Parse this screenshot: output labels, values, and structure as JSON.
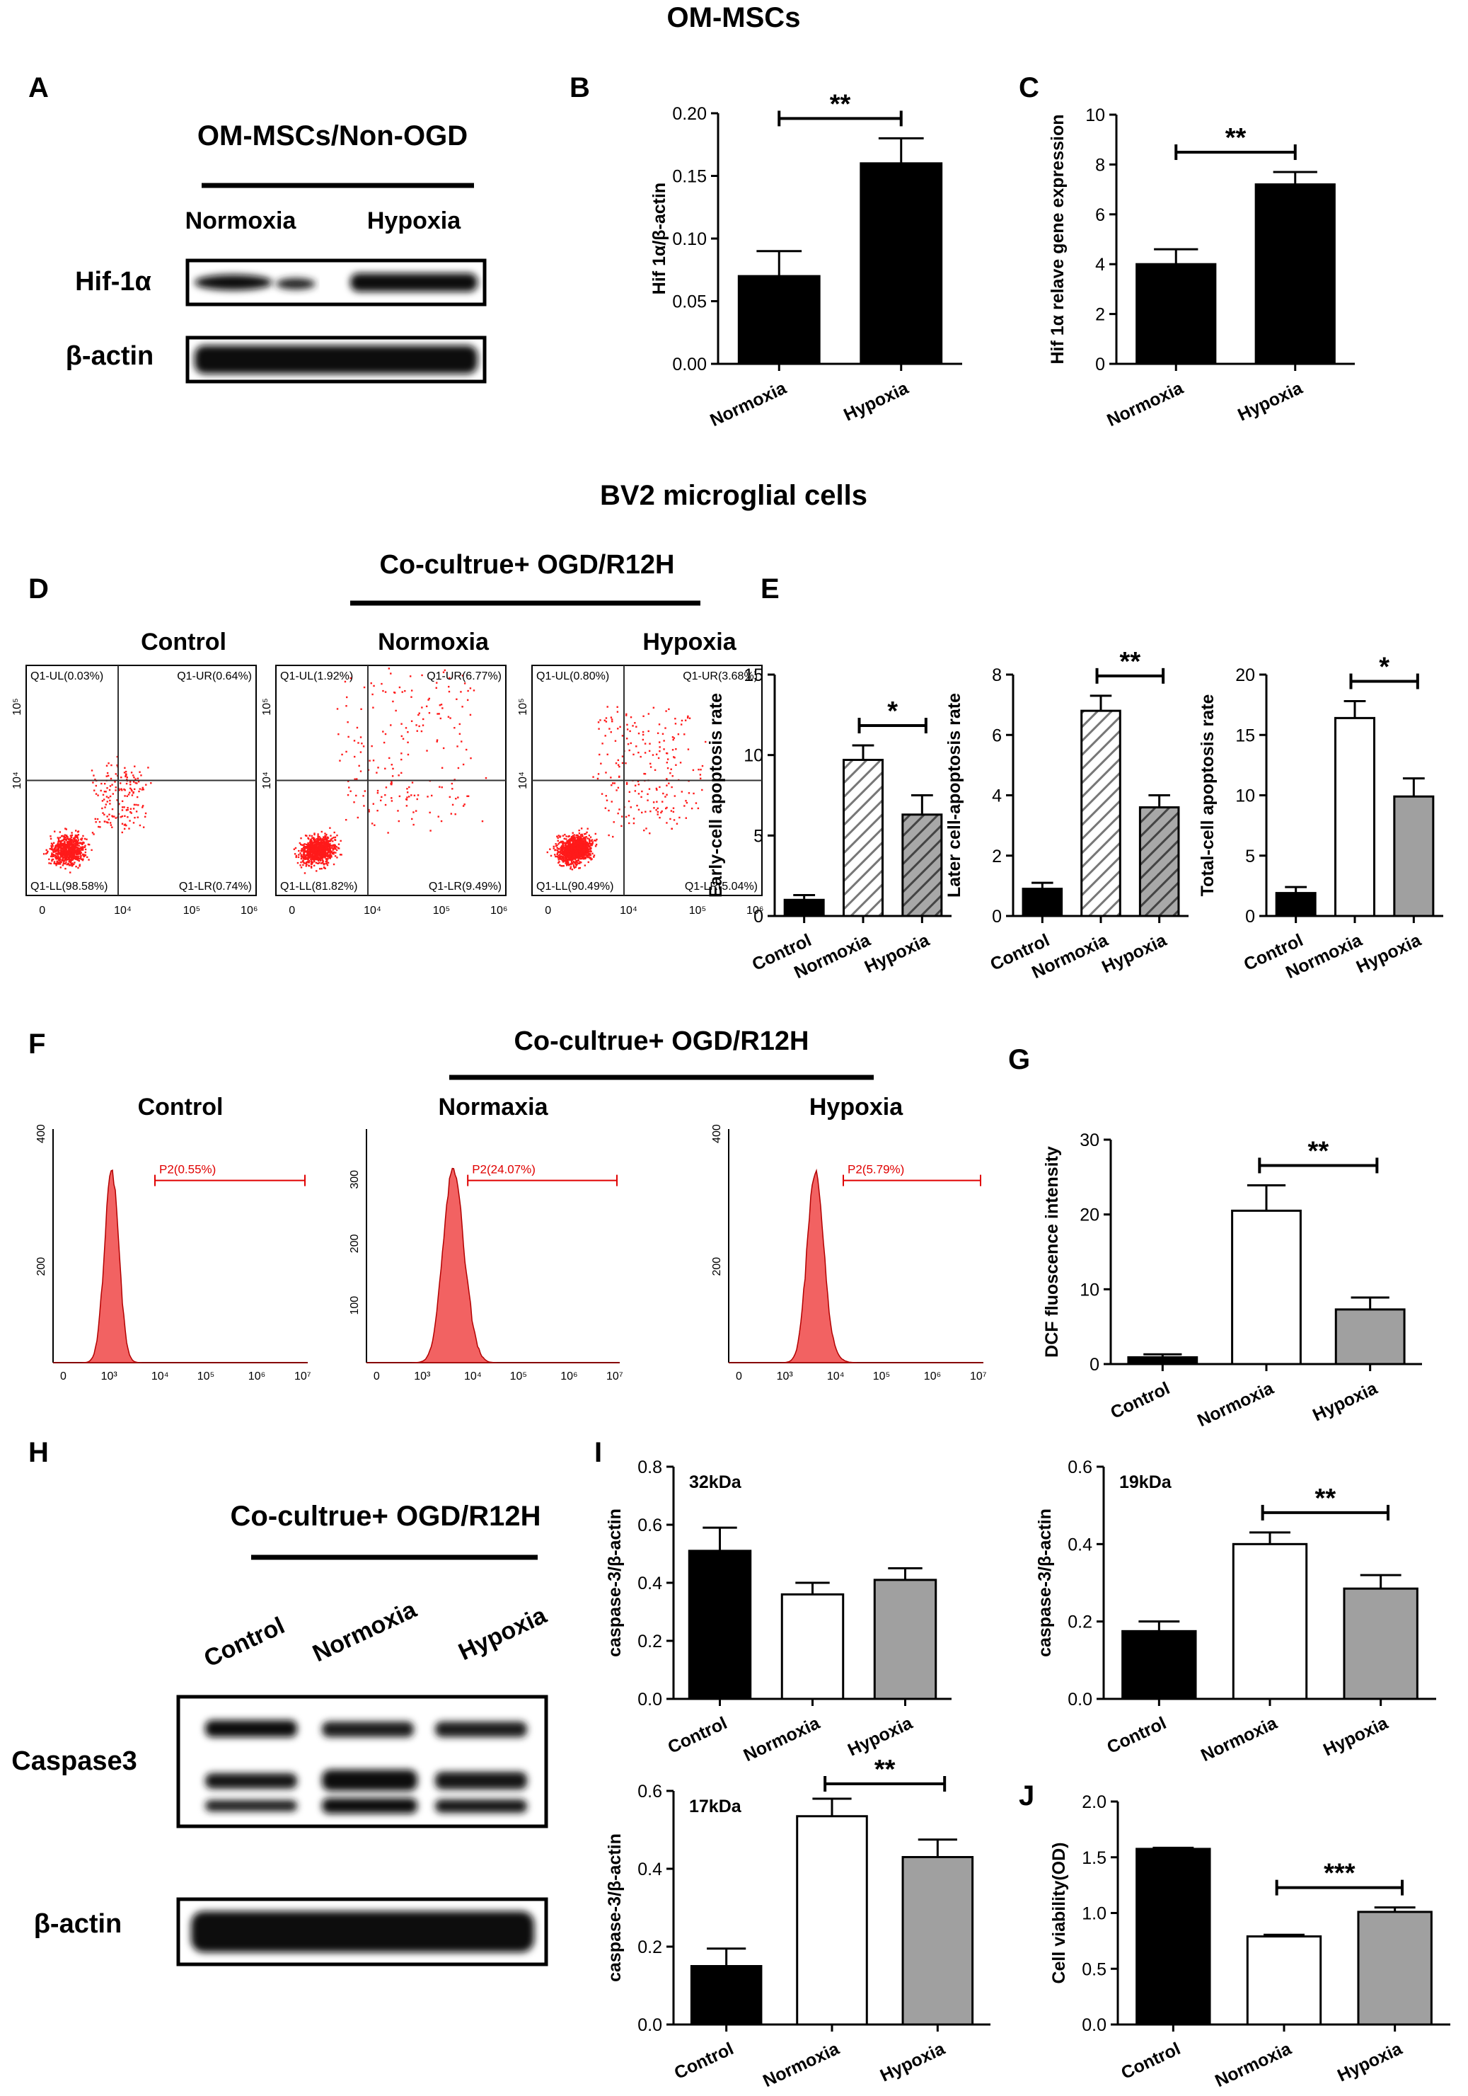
{
  "section_titles": {
    "om_mscs": "OM-MSCs",
    "bv2": "BV2 microglial cells"
  },
  "panel_letters": {
    "A": "A",
    "B": "B",
    "C": "C",
    "D": "D",
    "E": "E",
    "F": "F",
    "G": "G",
    "H": "H",
    "I": "I",
    "J": "J"
  },
  "panel_a": {
    "header": "OM-MSCs/Non-OGD",
    "lanes": [
      "Normoxia",
      "Hypoxia"
    ],
    "rows": [
      "Hif-1α",
      "β-actin"
    ]
  },
  "panel_d": {
    "header": "Co-cultrue+ OGD/R12H",
    "plots": [
      {
        "title": "Control",
        "ul": "Q1-UL(0.03%)",
        "ur": "Q1-UR(0.64%)",
        "ll": "Q1-LL(98.58%)",
        "lr": "Q1-LR(0.74%)"
      },
      {
        "title": "Normoxia",
        "ul": "Q1-UL(1.92%)",
        "ur": "Q1-UR(6.77%)",
        "ll": "Q1-LL(81.82%)",
        "lr": "Q1-LR(9.49%)"
      },
      {
        "title": "Hypoxia",
        "ul": "Q1-UL(0.80%)",
        "ur": "Q1-UR(3.68%)",
        "ll": "Q1-LL(90.49%)",
        "lr": "Q1-LR(5.04%)"
      }
    ],
    "xticks": [
      "0",
      "10⁴",
      "10⁵",
      "10⁶"
    ],
    "yticks": [
      "10⁴",
      "10⁵"
    ]
  },
  "panel_f": {
    "header": "Co-cultrue+ OGD/R12H",
    "plots": [
      {
        "title": "Control",
        "gate": "P2(0.55%)",
        "yticks": [
          "200",
          "400"
        ]
      },
      {
        "title": "Normaxia",
        "gate": "P2(24.07%)",
        "yticks": [
          "100",
          "200",
          "300"
        ]
      },
      {
        "title": "Hypoxia",
        "gate": "P2(5.79%)",
        "yticks": [
          "200",
          "400"
        ]
      }
    ],
    "xticks": [
      "0",
      "10³",
      "10⁴",
      "10⁵",
      "10⁶",
      "10⁷"
    ]
  },
  "panel_h": {
    "header": "Co-cultrue+ OGD/R12H",
    "lanes": [
      "Control",
      "Normoxia",
      "Hypoxia"
    ],
    "rows": [
      "Caspase3",
      "β-actin"
    ]
  },
  "colors": {
    "black": "#000000",
    "gray": "#a0a0a0",
    "white": "#ffffff",
    "dot_red": "#ff1a1a",
    "hist_fill": "#f26262"
  },
  "chart_data": [
    {
      "id": "B",
      "type": "bar",
      "categories": [
        "Normoxia",
        "Hypoxia"
      ],
      "values": [
        0.07,
        0.16
      ],
      "errors": [
        0.02,
        0.02
      ],
      "fills": [
        "black",
        "black"
      ],
      "ylabel": "Hif 1α/β-actin",
      "ylim": [
        0,
        0.2
      ],
      "yticks": [
        0,
        0.05,
        0.1,
        0.15,
        0.2
      ],
      "ytick_labels": [
        "0.00",
        "0.05",
        "0.10",
        "0.15",
        "0.20"
      ],
      "sig": {
        "from": 0,
        "to": 1,
        "label": "**"
      }
    },
    {
      "id": "C",
      "type": "bar",
      "categories": [
        "Normoxia",
        "Hypoxia"
      ],
      "values": [
        4.0,
        7.2
      ],
      "errors": [
        0.6,
        0.5
      ],
      "fills": [
        "black",
        "black"
      ],
      "ylabel": "Hif 1α relave gene expression",
      "ylim": [
        0,
        10
      ],
      "yticks": [
        0,
        2,
        4,
        6,
        8,
        10
      ],
      "ytick_labels": [
        "0",
        "2",
        "4",
        "6",
        "8",
        "10"
      ],
      "sig": {
        "from": 0,
        "to": 1,
        "label": "**"
      }
    },
    {
      "id": "E1",
      "type": "bar",
      "categories": [
        "Control",
        "Normoxia",
        "Hypoxia"
      ],
      "values": [
        1.0,
        9.7,
        6.3
      ],
      "errors": [
        0.3,
        0.9,
        1.2
      ],
      "fills": [
        "black",
        "hatch-light",
        "hatch-dark"
      ],
      "ylabel": "Early-cell apoptosis rate",
      "ylim": [
        0,
        15
      ],
      "yticks": [
        0,
        5,
        10,
        15
      ],
      "ytick_labels": [
        "0",
        "5",
        "10",
        "15"
      ],
      "sig": {
        "from": 1,
        "to": 2,
        "label": "*"
      }
    },
    {
      "id": "E2",
      "type": "bar",
      "categories": [
        "Control",
        "Normoxia",
        "Hypoxia"
      ],
      "values": [
        0.9,
        6.8,
        3.6
      ],
      "errors": [
        0.2,
        0.5,
        0.4
      ],
      "fills": [
        "black",
        "hatch-light",
        "hatch-dark"
      ],
      "ylabel": "Later cell-apoptosis rate",
      "ylim": [
        0,
        8
      ],
      "yticks": [
        0,
        2,
        4,
        6,
        8
      ],
      "ytick_labels": [
        "0",
        "2",
        "4",
        "6",
        "8"
      ],
      "sig": {
        "from": 1,
        "to": 2,
        "label": "**"
      }
    },
    {
      "id": "E3",
      "type": "bar",
      "categories": [
        "Control",
        "Normoxia",
        "Hypoxia"
      ],
      "values": [
        1.9,
        16.4,
        9.9
      ],
      "errors": [
        0.5,
        1.4,
        1.5
      ],
      "fills": [
        "black",
        "white",
        "gray"
      ],
      "ylabel": "Total-cell apoptosis rate",
      "ylim": [
        0,
        20
      ],
      "yticks": [
        0,
        5,
        10,
        15,
        20
      ],
      "ytick_labels": [
        "0",
        "5",
        "10",
        "15",
        "20"
      ],
      "sig": {
        "from": 1,
        "to": 2,
        "label": "*"
      }
    },
    {
      "id": "G",
      "type": "bar",
      "categories": [
        "Control",
        "Normoxia",
        "Hypoxia"
      ],
      "values": [
        0.9,
        20.5,
        7.3
      ],
      "errors": [
        0.4,
        3.4,
        1.6
      ],
      "fills": [
        "black",
        "white",
        "gray"
      ],
      "ylabel": "DCF fluoscence intensity",
      "ylim": [
        0,
        30
      ],
      "yticks": [
        0,
        10,
        20,
        30
      ],
      "ytick_labels": [
        "0",
        "10",
        "20",
        "30"
      ],
      "sig": {
        "from": 1,
        "to": 2,
        "label": "**"
      }
    },
    {
      "id": "I1",
      "type": "bar",
      "annotation": "32kDa",
      "categories": [
        "Control",
        "Normoxia",
        "Hypoxia"
      ],
      "values": [
        0.51,
        0.36,
        0.41
      ],
      "errors": [
        0.08,
        0.04,
        0.04
      ],
      "fills": [
        "black",
        "white",
        "gray"
      ],
      "ylabel": "caspase-3/β-actin",
      "ylim": [
        0,
        0.8
      ],
      "yticks": [
        0,
        0.2,
        0.4,
        0.6,
        0.8
      ],
      "ytick_labels": [
        "0.0",
        "0.2",
        "0.4",
        "0.6",
        "0.8"
      ],
      "sig": null
    },
    {
      "id": "I2",
      "type": "bar",
      "annotation": "19kDa",
      "categories": [
        "Control",
        "Normoxia",
        "Hypoxia"
      ],
      "values": [
        0.175,
        0.4,
        0.285
      ],
      "errors": [
        0.025,
        0.03,
        0.035
      ],
      "fills": [
        "black",
        "white",
        "gray"
      ],
      "ylabel": "caspase-3/β-actin",
      "ylim": [
        0,
        0.6
      ],
      "yticks": [
        0,
        0.2,
        0.4,
        0.6
      ],
      "ytick_labels": [
        "0.0",
        "0.2",
        "0.4",
        "0.6"
      ],
      "sig": {
        "from": 1,
        "to": 2,
        "label": "**"
      }
    },
    {
      "id": "I3",
      "type": "bar",
      "annotation": "17kDa",
      "categories": [
        "Control",
        "Normoxia",
        "Hypoxia"
      ],
      "values": [
        0.15,
        0.535,
        0.43
      ],
      "errors": [
        0.045,
        0.045,
        0.045
      ],
      "fills": [
        "black",
        "white",
        "gray"
      ],
      "ylabel": "caspase-3/β-actin",
      "ylim": [
        0,
        0.6
      ],
      "yticks": [
        0,
        0.2,
        0.4,
        0.6
      ],
      "ytick_labels": [
        "0.0",
        "0.2",
        "0.4",
        "0.6"
      ],
      "sig": {
        "from": 1,
        "to": 2,
        "label": "**"
      }
    },
    {
      "id": "J",
      "type": "bar",
      "categories": [
        "Control",
        "Normoxia",
        "Hypoxia"
      ],
      "values": [
        1.575,
        0.79,
        1.01
      ],
      "errors": [
        0.01,
        0.015,
        0.04
      ],
      "fills": [
        "black",
        "white",
        "gray"
      ],
      "ylabel": "Cell viability(OD)",
      "ylim": [
        0,
        2.0
      ],
      "yticks": [
        0,
        0.5,
        1.0,
        1.5,
        2.0
      ],
      "ytick_labels": [
        "0.0",
        "0.5",
        "1.0",
        "1.5",
        "2.0"
      ],
      "sig": {
        "from": 1,
        "to": 2,
        "label": "***"
      }
    }
  ]
}
